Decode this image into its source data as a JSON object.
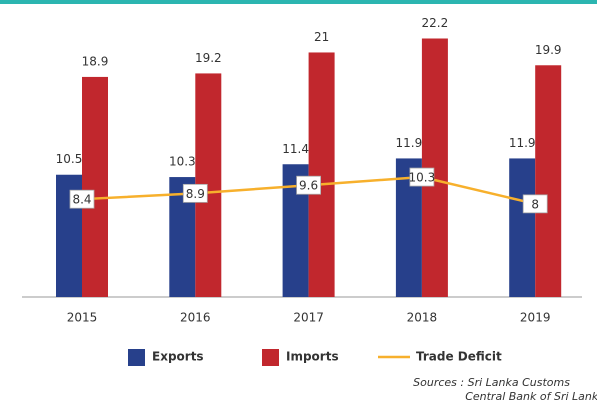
{
  "chart_data": {
    "type": "bar",
    "categories": [
      "2015",
      "2016",
      "2017",
      "2018",
      "2019"
    ],
    "series": [
      {
        "name": "Exports",
        "color": "#27408b",
        "values": [
          10.5,
          10.3,
          11.4,
          11.9,
          11.9
        ]
      },
      {
        "name": "Imports",
        "color": "#c1272d",
        "values": [
          18.9,
          19.2,
          21.0,
          22.2,
          19.9
        ]
      },
      {
        "name": "Trade Deficit",
        "color": "#f7b02c",
        "kind": "line",
        "values": [
          8.4,
          8.9,
          9.6,
          10.3,
          8.0
        ]
      }
    ],
    "ylim": [
      0,
      22.5
    ],
    "sources": [
      "Sources : Sri Lanka Customs",
      "Central Bank of Sri Lanka"
    ]
  }
}
